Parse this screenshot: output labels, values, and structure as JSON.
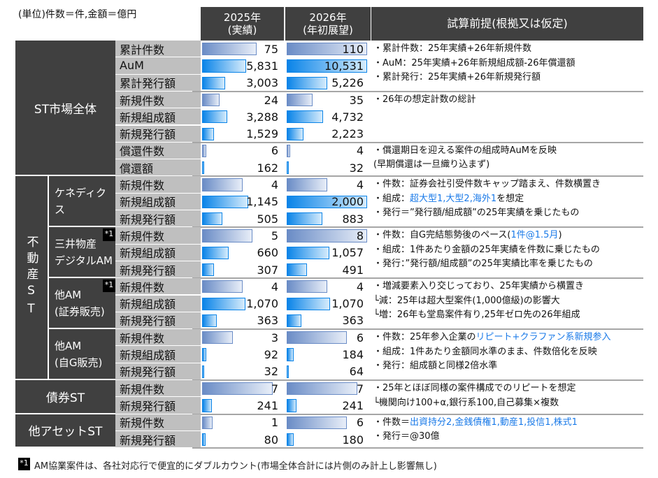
{
  "unit_label": "(単位)件数＝件,金額＝億円",
  "headers": {
    "col2025": [
      "2025年",
      "(実績)"
    ],
    "col2026": [
      "2026年",
      "(年初展望)"
    ],
    "notes": "試算前提(根拠又は仮定)"
  },
  "colors": {
    "header_bg": "#404040",
    "label_bg": "#bfbfbf",
    "count_bar": "#6a8cc6",
    "amount_bar": "#0a84e8",
    "note_highlight": "#1a7ae8"
  },
  "groups": [
    {
      "label": "ST市場全体",
      "subgroups": [
        {
          "label": null,
          "note_blocks": [
            {
              "rows": 3,
              "lines": [
                [
                  {
                    "t": "・累計件数：25年実績+26年新規件数"
                  }
                ],
                [
                  {
                    "t": "・AuM：25年実績+26年新規組成額-26年償還額"
                  }
                ],
                [
                  {
                    "t": "・累計発行：25年実績+26年新規発行額"
                  }
                ]
              ]
            },
            {
              "rows": 3,
              "lines": [
                [
                  {
                    "t": "・26年の想定計数の総計"
                  }
                ]
              ]
            },
            {
              "rows": 2,
              "lines": [
                [
                  {
                    "t": "・償還期日を迎える案件の組成時AuMを反映"
                  }
                ],
                [
                  {
                    "t": " (早期償還は一旦織り込まず)"
                  }
                ]
              ]
            }
          ],
          "rows": [
            {
              "label": "累計件数",
              "type": "count",
              "v2025": "75",
              "v2026": "110",
              "bar2025": 0.68,
              "bar2026": 1.0
            },
            {
              "label": "AuM",
              "type": "amount",
              "v2025": "5,831",
              "v2026": "10,531",
              "bar2025": 0.55,
              "bar2026": 1.0
            },
            {
              "label": "累計発行額",
              "type": "amount",
              "v2025": "3,003",
              "v2026": "5,226",
              "bar2025": 0.29,
              "bar2026": 0.5
            },
            {
              "label": "新規件数",
              "type": "count",
              "v2025": "24",
              "v2026": "35",
              "bar2025": 0.22,
              "bar2026": 0.32
            },
            {
              "label": "新規組成額",
              "type": "amount",
              "v2025": "3,288",
              "v2026": "4,732",
              "bar2025": 0.31,
              "bar2026": 0.45
            },
            {
              "label": "新規発行額",
              "type": "amount",
              "v2025": "1,529",
              "v2026": "2,223",
              "bar2025": 0.15,
              "bar2026": 0.21
            },
            {
              "label": "償還件数",
              "type": "count",
              "v2025": "6",
              "v2026": "4",
              "bar2025": 0.05,
              "bar2026": 0.04
            },
            {
              "label": "償還額",
              "type": "amount",
              "v2025": "162",
              "v2026": "32",
              "bar2025": 0.02,
              "bar2026": 0.01
            }
          ]
        }
      ]
    },
    {
      "label": "不動産ST",
      "vertical": true,
      "subgroups": [
        {
          "label": [
            "ケネディクス"
          ],
          "note_blocks": [
            {
              "rows": 3,
              "lines": [
                [
                  {
                    "t": "・件数：証券会社引受件数キャップ踏まえ、件数横置き"
                  }
                ],
                [
                  {
                    "t": "・組成："
                  },
                  {
                    "t": "超大型1,大型2,海外1",
                    "blue": true
                  },
                  {
                    "t": "を想定"
                  }
                ],
                [
                  {
                    "t": "・発行＝”発行額/組成額”の25年実績を乗じたもの"
                  }
                ]
              ]
            }
          ],
          "rows": [
            {
              "label": "新規件数",
              "type": "count",
              "v2025": "4",
              "v2026": "4",
              "bar2025": 0.5,
              "bar2026": 0.5
            },
            {
              "label": "新規組成額",
              "type": "amount",
              "v2025": "1,145",
              "v2026": "2,000",
              "bar2025": 0.57,
              "bar2026": 1.0
            },
            {
              "label": "新規発行額",
              "type": "amount",
              "v2025": "505",
              "v2026": "883",
              "bar2025": 0.25,
              "bar2026": 0.44
            }
          ]
        },
        {
          "label": [
            "三井物産",
            "デジタルAM"
          ],
          "badge": "*1",
          "note_blocks": [
            {
              "rows": 3,
              "lines": [
                [
                  {
                    "t": "・件数：自G完結態勢後のペース("
                  },
                  {
                    "t": "1件@1.5月",
                    "blue": true
                  },
                  {
                    "t": ")"
                  }
                ],
                [
                  {
                    "t": "・組成：1件あたり金額の25年実績を件数に乗じたもの"
                  }
                ],
                [
                  {
                    "t": "・発行：”発行額/組成額”の25年実績比率を乗じたもの"
                  }
                ]
              ]
            }
          ],
          "rows": [
            {
              "label": "新規件数",
              "type": "count",
              "v2025": "5",
              "v2026": "8",
              "bar2025": 0.63,
              "bar2026": 1.0
            },
            {
              "label": "新規組成額",
              "type": "amount",
              "v2025": "660",
              "v2026": "1,057",
              "bar2025": 0.33,
              "bar2026": 0.53
            },
            {
              "label": "新規発行額",
              "type": "amount",
              "v2025": "307",
              "v2026": "491",
              "bar2025": 0.15,
              "bar2026": 0.25
            }
          ]
        },
        {
          "label": [
            "他AM",
            "(証券販売)"
          ],
          "badge": "*1",
          "note_blocks": [
            {
              "rows": 3,
              "lines": [
                [
                  {
                    "t": "・増減要素入り交じっており、25年実績から横置き"
                  }
                ],
                [
                  {
                    "t": " └減：25年は超大型案件(1,000億級)の影響大"
                  }
                ],
                [
                  {
                    "t": " └増：26年も堂島案件有り,25年ゼロ先の26年組成"
                  }
                ]
              ]
            }
          ],
          "rows": [
            {
              "label": "新規件数",
              "type": "count",
              "v2025": "4",
              "v2026": "4",
              "bar2025": 0.5,
              "bar2026": 0.5
            },
            {
              "label": "新規組成額",
              "type": "amount",
              "v2025": "1,070",
              "v2026": "1,070",
              "bar2025": 0.54,
              "bar2026": 0.54
            },
            {
              "label": "新規発行額",
              "type": "amount",
              "v2025": "363",
              "v2026": "363",
              "bar2025": 0.18,
              "bar2026": 0.18
            }
          ]
        },
        {
          "label": [
            "他AM",
            "(自G販売)"
          ],
          "note_blocks": [
            {
              "rows": 3,
              "lines": [
                [
                  {
                    "t": "・件数：25年参入企業の"
                  },
                  {
                    "t": "リピート+クラファン系新規参入",
                    "blue": true
                  }
                ],
                [
                  {
                    "t": "・組成：1件あたり金額同水準のまま、件数倍化を反映"
                  }
                ],
                [
                  {
                    "t": "・発行：組成額と同様2倍水準"
                  }
                ]
              ]
            }
          ],
          "rows": [
            {
              "label": "新規件数",
              "type": "count",
              "v2025": "3",
              "v2026": "6",
              "bar2025": 0.38,
              "bar2026": 0.75
            },
            {
              "label": "新規組成額",
              "type": "amount",
              "v2025": "92",
              "v2026": "184",
              "bar2025": 0.05,
              "bar2026": 0.09
            },
            {
              "label": "新規発行額",
              "type": "amount",
              "v2025": "32",
              "v2026": "64",
              "bar2025": 0.02,
              "bar2026": 0.03
            }
          ]
        }
      ]
    },
    {
      "label": "債券ST",
      "subgroups": [
        {
          "label": null,
          "note_blocks": [
            {
              "rows": 2,
              "lines": [
                [
                  {
                    "t": "・25年とほぼ同様の案件構成でのリピートを想定"
                  }
                ],
                [
                  {
                    "t": " └機関向け100+α,銀行系100,自己募集×複数"
                  }
                ]
              ]
            }
          ],
          "rows": [
            {
              "label": "新規件数",
              "type": "count",
              "v2025": "7",
              "v2026": "7",
              "bar2025": 0.88,
              "bar2026": 0.88
            },
            {
              "label": "新規発行額",
              "type": "amount",
              "v2025": "241",
              "v2026": "241",
              "bar2025": 0.12,
              "bar2026": 0.12
            }
          ]
        }
      ]
    },
    {
      "label": "他アセットST",
      "subgroups": [
        {
          "label": null,
          "note_blocks": [
            {
              "rows": 2,
              "lines": [
                [
                  {
                    "t": "・件数＝"
                  },
                  {
                    "t": "出資持分2,金銭債権1,動産1,投信1,株式1",
                    "blue": true
                  }
                ],
                [
                  {
                    "t": "・発行＝@30億"
                  }
                ]
              ]
            }
          ],
          "rows": [
            {
              "label": "新規件数",
              "type": "count",
              "v2025": "1",
              "v2026": "6",
              "bar2025": 0.13,
              "bar2026": 0.75
            },
            {
              "label": "新規発行額",
              "type": "amount",
              "v2025": "80",
              "v2026": "180",
              "bar2025": 0.04,
              "bar2026": 0.09
            }
          ]
        }
      ]
    }
  ],
  "footnote": {
    "badge": "*1",
    "text": "AM協業案件は、各社対応行で便宜的にダブルカウント(市場全体合計には片側のみ計上し影響無し)"
  }
}
